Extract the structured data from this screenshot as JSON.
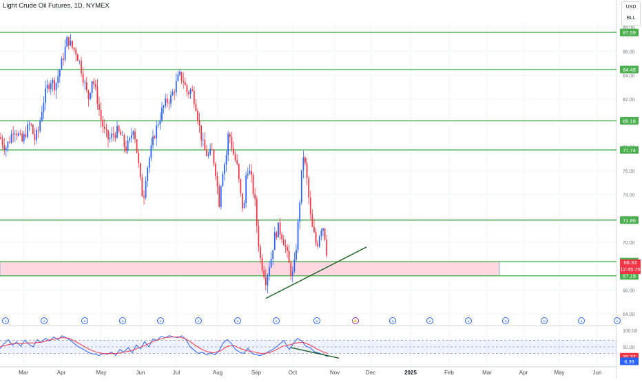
{
  "header": {
    "title": "Light Crude Oil Futures, 1D, NYMEX"
  },
  "currency_box": {
    "currency": "USD",
    "unit": "BLL"
  },
  "colors": {
    "up": "#2962ff",
    "down": "#f23645",
    "level": "#4caf50",
    "zone": "#ffd1dc",
    "rsi": "#2962ff",
    "rsi_ma": "#f23645",
    "grid": "#f0f3fa",
    "axis_text": "#787b86"
  },
  "current_price": {
    "price": "68.33",
    "countdown": "12:45:75"
  },
  "chart_data": [
    {
      "type": "candlestick",
      "title": "Light Crude Oil Futures, 1D, NYMEX",
      "y_ticks": [
        "88.00",
        "86.00",
        "84.00",
        "82.00",
        "78.00",
        "76.00",
        "74.00",
        "70.00",
        "66.00",
        "64.00"
      ],
      "ylim": [
        64.0,
        88.0
      ],
      "x_ticks": [
        "Mar",
        "Apr",
        "May",
        "Jun",
        "Jul",
        "Aug",
        "Sep",
        "Oct",
        "Nov",
        "Dec",
        "2025",
        "Feb",
        "Mar",
        "Apr",
        "May",
        "Jun"
      ],
      "horizontal_levels": [
        87.59,
        84.48,
        80.18,
        77.74,
        71.86,
        68.38,
        67.19
      ],
      "level_labels": [
        "87.59",
        "84.48",
        "80.18",
        "77.74",
        "71.86",
        "68.38",
        "67.19"
      ],
      "zone": {
        "from": 67.19,
        "to": 68.38
      },
      "trendline": {
        "from": {
          "x": "Sep",
          "y": 65.3
        },
        "to": {
          "x": "Nov",
          "y": 69.6
        }
      },
      "close_path": [
        [
          0,
          78.8
        ],
        [
          8,
          77.9
        ],
        [
          14,
          78.6
        ],
        [
          20,
          79.6
        ],
        [
          26,
          79.1
        ],
        [
          32,
          78.4
        ],
        [
          38,
          79.3
        ],
        [
          44,
          80.0
        ],
        [
          50,
          78.6
        ],
        [
          56,
          79.4
        ],
        [
          62,
          81.6
        ],
        [
          68,
          82.9
        ],
        [
          74,
          83.6
        ],
        [
          80,
          83.1
        ],
        [
          86,
          84.3
        ],
        [
          92,
          85.6
        ],
        [
          98,
          87.1
        ],
        [
          104,
          86.4
        ],
        [
          110,
          86.0
        ],
        [
          116,
          85.0
        ],
        [
          122,
          83.5
        ],
        [
          128,
          82.0
        ],
        [
          134,
          83.8
        ],
        [
          140,
          82.4
        ],
        [
          146,
          80.4
        ],
        [
          152,
          79.2
        ],
        [
          158,
          78.6
        ],
        [
          164,
          79.0
        ],
        [
          170,
          79.3
        ],
        [
          176,
          78.9
        ],
        [
          182,
          77.8
        ],
        [
          188,
          78.4
        ],
        [
          194,
          79.8
        ],
        [
          200,
          77.0
        ],
        [
          204,
          75.0
        ],
        [
          208,
          73.5
        ],
        [
          212,
          75.8
        ],
        [
          218,
          77.4
        ],
        [
          224,
          79.0
        ],
        [
          230,
          80.1
        ],
        [
          236,
          81.2
        ],
        [
          242,
          81.8
        ],
        [
          248,
          82.1
        ],
        [
          254,
          83.0
        ],
        [
          260,
          84.0
        ],
        [
          266,
          83.6
        ],
        [
          272,
          82.5
        ],
        [
          278,
          82.8
        ],
        [
          284,
          81.6
        ],
        [
          290,
          79.5
        ],
        [
          296,
          77.8
        ],
        [
          302,
          77.2
        ],
        [
          308,
          77.6
        ],
        [
          314,
          75.6
        ],
        [
          318,
          73.2
        ],
        [
          322,
          75.8
        ],
        [
          328,
          77.0
        ],
        [
          332,
          79.4
        ],
        [
          338,
          77.6
        ],
        [
          344,
          76.4
        ],
        [
          350,
          73.6
        ],
        [
          354,
          72.5
        ],
        [
          358,
          76.4
        ],
        [
          364,
          75.6
        ],
        [
          370,
          73.4
        ],
        [
          374,
          70.6
        ],
        [
          378,
          68.6
        ],
        [
          382,
          67.7
        ],
        [
          386,
          66.8
        ],
        [
          390,
          67.9
        ],
        [
          394,
          68.8
        ],
        [
          398,
          70.4
        ],
        [
          404,
          71.2
        ],
        [
          410,
          70.5
        ],
        [
          416,
          69.2
        ],
        [
          420,
          68.0
        ],
        [
          424,
          67.1
        ],
        [
          428,
          68.3
        ],
        [
          432,
          71.0
        ],
        [
          436,
          74.2
        ],
        [
          440,
          77.4
        ],
        [
          444,
          76.1
        ],
        [
          448,
          73.8
        ],
        [
          452,
          71.4
        ],
        [
          456,
          70.6
        ],
        [
          460,
          69.6
        ],
        [
          464,
          70.8
        ],
        [
          468,
          71.6
        ],
        [
          472,
          70.4
        ],
        [
          476,
          68.33
        ]
      ],
      "pivot_markers": [
        0.5,
        2.0,
        3.1,
        4.1,
        5.1,
        6.1,
        7.1,
        8.1,
        9.1,
        10.1,
        11.1,
        12.1,
        13.2,
        14.2,
        15.2,
        16.2
      ]
    },
    {
      "type": "line",
      "title": "RSI",
      "y_ticks": [
        "100.00",
        "50.00"
      ],
      "ylim": [
        0,
        100
      ],
      "levels": [
        70,
        50,
        30
      ],
      "values": [
        [
          0,
          45
        ],
        [
          6,
          60
        ],
        [
          12,
          72
        ],
        [
          18,
          55
        ],
        [
          24,
          65
        ],
        [
          30,
          52
        ],
        [
          36,
          70
        ],
        [
          42,
          58
        ],
        [
          48,
          50
        ],
        [
          54,
          72
        ],
        [
          60,
          63
        ],
        [
          66,
          76
        ],
        [
          72,
          68
        ],
        [
          78,
          80
        ],
        [
          84,
          72
        ],
        [
          90,
          84
        ],
        [
          96,
          78
        ],
        [
          102,
          70
        ],
        [
          108,
          60
        ],
        [
          114,
          50
        ],
        [
          120,
          44
        ],
        [
          126,
          36
        ],
        [
          132,
          30
        ],
        [
          138,
          28
        ],
        [
          144,
          24
        ],
        [
          150,
          30
        ],
        [
          156,
          28
        ],
        [
          162,
          34
        ],
        [
          168,
          24
        ],
        [
          174,
          42
        ],
        [
          180,
          34
        ],
        [
          186,
          48
        ],
        [
          192,
          32
        ],
        [
          198,
          56
        ],
        [
          204,
          44
        ],
        [
          210,
          66
        ],
        [
          216,
          50
        ],
        [
          222,
          74
        ],
        [
          228,
          70
        ],
        [
          234,
          82
        ],
        [
          240,
          78
        ],
        [
          246,
          84
        ],
        [
          252,
          80
        ],
        [
          258,
          78
        ],
        [
          264,
          84
        ],
        [
          270,
          72
        ],
        [
          276,
          50
        ],
        [
          282,
          40
        ],
        [
          288,
          30
        ],
        [
          294,
          34
        ],
        [
          300,
          26
        ],
        [
          306,
          32
        ],
        [
          312,
          26
        ],
        [
          318,
          38
        ],
        [
          324,
          62
        ],
        [
          330,
          72
        ],
        [
          336,
          60
        ],
        [
          342,
          42
        ],
        [
          348,
          34
        ],
        [
          354,
          30
        ],
        [
          360,
          46
        ],
        [
          366,
          30
        ],
        [
          372,
          26
        ],
        [
          378,
          24
        ],
        [
          384,
          28
        ],
        [
          390,
          36
        ],
        [
          396,
          42
        ],
        [
          402,
          52
        ],
        [
          408,
          62
        ],
        [
          412,
          70
        ],
        [
          416,
          55
        ],
        [
          420,
          42
        ],
        [
          426,
          60
        ],
        [
          432,
          76
        ],
        [
          438,
          68
        ],
        [
          444,
          52
        ],
        [
          450,
          48
        ],
        [
          456,
          36
        ],
        [
          462,
          32
        ],
        [
          468,
          28
        ],
        [
          476,
          20.37
        ]
      ],
      "ma_values": [
        [
          0,
          50
        ],
        [
          10,
          56
        ],
        [
          20,
          60
        ],
        [
          30,
          60
        ],
        [
          40,
          62
        ],
        [
          50,
          62
        ],
        [
          60,
          64
        ],
        [
          70,
          70
        ],
        [
          80,
          74
        ],
        [
          90,
          78
        ],
        [
          100,
          76
        ],
        [
          110,
          66
        ],
        [
          120,
          54
        ],
        [
          130,
          42
        ],
        [
          140,
          34
        ],
        [
          150,
          30
        ],
        [
          160,
          30
        ],
        [
          170,
          30
        ],
        [
          180,
          34
        ],
        [
          190,
          38
        ],
        [
          200,
          46
        ],
        [
          210,
          54
        ],
        [
          220,
          64
        ],
        [
          230,
          72
        ],
        [
          240,
          78
        ],
        [
          250,
          80
        ],
        [
          260,
          80
        ],
        [
          270,
          74
        ],
        [
          280,
          60
        ],
        [
          290,
          46
        ],
        [
          300,
          36
        ],
        [
          310,
          32
        ],
        [
          320,
          38
        ],
        [
          330,
          52
        ],
        [
          340,
          54
        ],
        [
          350,
          44
        ],
        [
          360,
          38
        ],
        [
          370,
          34
        ],
        [
          380,
          30
        ],
        [
          390,
          32
        ],
        [
          400,
          40
        ],
        [
          410,
          52
        ],
        [
          420,
          56
        ],
        [
          430,
          62
        ],
        [
          440,
          64
        ],
        [
          450,
          56
        ],
        [
          460,
          44
        ],
        [
          470,
          34
        ],
        [
          476,
          30
        ]
      ],
      "trendline": {
        "from": [
          422,
          48
        ],
        "to": [
          492,
          16
        ]
      },
      "value_labels": [
        "20.37",
        "6.39"
      ]
    }
  ]
}
